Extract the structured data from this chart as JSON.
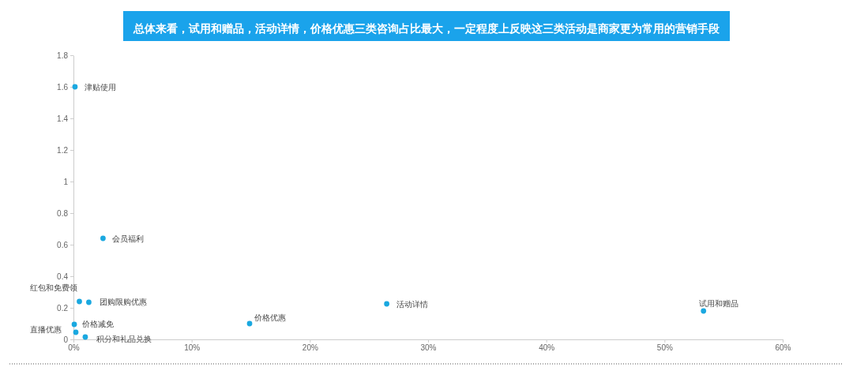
{
  "chart_data": {
    "type": "scatter",
    "title": "总体来看，试用和赠品，活动详情，价格优惠三类咨询占比最大，一定程度上反映这三类活动是商家更为常用的营销手段",
    "x": [
      0.13,
      2.5,
      0.5,
      1.3,
      0.07,
      0.2,
      1.0,
      14.9,
      26.5,
      53.3
    ],
    "series": [
      {
        "color": "#1aa8e0",
        "values": [
          1.6,
          0.64,
          0.24,
          0.235,
          0.095,
          0.045,
          0.015,
          0.1,
          0.225,
          0.18
        ]
      }
    ],
    "annotations": [
      {
        "text": "津贴使用",
        "x": 0.13,
        "y": 1.6
      },
      {
        "text": "会员福利",
        "x": 2.5,
        "y": 0.64
      },
      {
        "text": "红包和免费领",
        "x": 0.5,
        "y": 0.24
      },
      {
        "text": "团购限购优惠",
        "x": 1.3,
        "y": 0.235
      },
      {
        "text": "价格减免",
        "x": 0.07,
        "y": 0.095
      },
      {
        "text": "直播优惠",
        "x": 0.2,
        "y": 0.045
      },
      {
        "text": "积分和礼品兑换",
        "x": 1.0,
        "y": 0.015
      },
      {
        "text": "价格优惠",
        "x": 14.9,
        "y": 0.1
      },
      {
        "text": "活动详情",
        "x": 26.5,
        "y": 0.225
      },
      {
        "text": "试用和赠品",
        "x": 53.3,
        "y": 0.18
      }
    ],
    "xlim": [
      0,
      60
    ],
    "xticks": [
      {
        "value": 0,
        "label": "0%"
      },
      {
        "value": 10,
        "label": "10%"
      },
      {
        "value": 20,
        "label": "20%"
      },
      {
        "value": 30,
        "label": "30%"
      },
      {
        "value": 40,
        "label": "40%"
      },
      {
        "value": 50,
        "label": "50%"
      },
      {
        "value": 60,
        "label": "60%"
      }
    ],
    "ylim": [
      0,
      1.8
    ],
    "yticks": [
      0,
      0.2,
      0.4,
      0.6,
      0.8,
      1,
      1.2,
      1.4,
      1.6,
      1.8
    ],
    "marker": "circle",
    "grid": false
  }
}
